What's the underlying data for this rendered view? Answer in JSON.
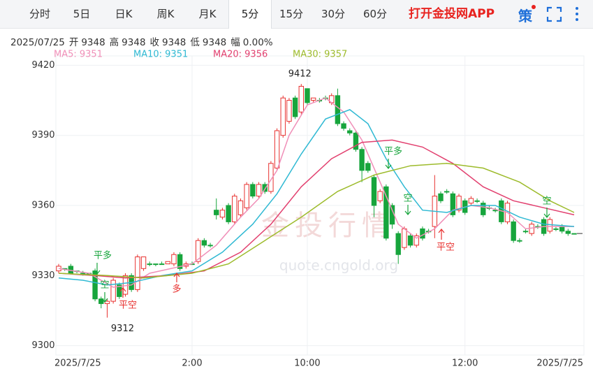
{
  "tabs": [
    {
      "label": "分时"
    },
    {
      "label": "5日"
    },
    {
      "label": "日K"
    },
    {
      "label": "周K"
    },
    {
      "label": "月K"
    },
    {
      "label": "5分",
      "active": true
    },
    {
      "label": "15分"
    },
    {
      "label": "30分"
    },
    {
      "label": "60分"
    }
  ],
  "brand": "打开金投网APP",
  "strategy_icon": "策",
  "info": {
    "date": "2025/07/25",
    "items": [
      {
        "label": "开",
        "value": 9348
      },
      {
        "label": "高",
        "value": 9348
      },
      {
        "label": "收",
        "value": 9348
      },
      {
        "label": "低",
        "value": 9348
      },
      {
        "label": "幅",
        "value": "0.00%"
      }
    ]
  },
  "watermark": {
    "title": "金投行情",
    "url": "quote.cngold.org"
  },
  "chart_data": {
    "type": "candlestick",
    "up_color": "#e8312f",
    "down_color": "#17a53c",
    "categories": [
      "2025/7/25",
      null,
      null,
      null,
      null,
      null,
      null,
      null,
      null,
      null,
      null,
      null,
      null,
      null,
      null,
      null,
      null,
      null,
      null,
      null,
      null,
      null,
      "2:00",
      null,
      null,
      null,
      null,
      null,
      null,
      null,
      null,
      null,
      null,
      null,
      null,
      null,
      null,
      null,
      null,
      null,
      null,
      "10:00",
      null,
      null,
      null,
      null,
      null,
      null,
      null,
      null,
      null,
      null,
      null,
      null,
      null,
      null,
      null,
      null,
      null,
      null,
      null,
      null,
      null,
      null,
      null,
      null,
      null,
      "12:00",
      null,
      null,
      null,
      null,
      null,
      null,
      null,
      null,
      null,
      null,
      null,
      null,
      null,
      null,
      null,
      null,
      null,
      "2025/7/25"
    ],
    "open": [
      9332,
      9333,
      9334,
      9332,
      9331,
      9331,
      9332,
      9320,
      9318,
      9319,
      9326,
      9322,
      9330,
      9324,
      9333,
      9335,
      9335,
      9335,
      9335,
      9335,
      9339,
      9334,
      9335,
      9336,
      9345,
      9343,
      9358,
      9355,
      9360,
      9353,
      9356,
      9359,
      9369,
      9364,
      9369,
      9366,
      9376,
      9390,
      9396,
      9406,
      9400,
      9410,
      9405,
      9405,
      9406,
      9404,
      9407,
      9395,
      9392,
      9391,
      9384,
      9378,
      9372,
      9362,
      9368,
      9360,
      9348,
      9342,
      9347,
      9343,
      9350,
      9349,
      9351,
      9365,
      9366,
      9365,
      9358,
      9362,
      9361,
      9362,
      9361,
      9359,
      9358,
      9362,
      9353,
      9353,
      9345,
      9349,
      9348,
      9351,
      9354,
      9349,
      9350,
      9351,
      9349,
      9348
    ],
    "high": [
      9335,
      9333,
      9335,
      9332,
      9332,
      9331,
      9333,
      9321,
      9320,
      9329,
      9327,
      9331,
      9331,
      9339,
      9338,
      9336,
      9335,
      9336,
      9336,
      9340,
      9340,
      9336,
      9336,
      9346,
      9346,
      9344,
      9363,
      9359,
      9361,
      9365,
      9363,
      9370,
      9370,
      9370,
      9370,
      9379,
      9393,
      9407,
      9406,
      9407,
      9412,
      9410,
      9406,
      9406,
      9407,
      9408,
      9410,
      9396,
      9393,
      9392,
      9385,
      9379,
      9373,
      9367,
      9369,
      9361,
      9349,
      9351,
      9348,
      9348,
      9351,
      9350,
      9373,
      9366,
      9367,
      9366,
      9365,
      9363,
      9364,
      9363,
      9362,
      9360,
      9359,
      9363,
      9362,
      9354,
      9346,
      9350,
      9353,
      9352,
      9355,
      9355,
      9351,
      9352,
      9350,
      9348
    ],
    "low": [
      9331,
      9332,
      9331,
      9331,
      9330,
      9330,
      9319,
      9316,
      9312,
      9318,
      9320,
      9321,
      9323,
      9323,
      9332,
      9334,
      9334,
      9335,
      9335,
      9334,
      9332,
      9333,
      9335,
      9335,
      9342,
      9342,
      9354,
      9354,
      9352,
      9352,
      9355,
      9358,
      9363,
      9363,
      9365,
      9365,
      9375,
      9389,
      9395,
      9397,
      9399,
      9403,
      9404,
      9404,
      9405,
      9403,
      9394,
      9392,
      9390,
      9383,
      9370,
      9374,
      9355,
      9361,
      9345,
      9350,
      9335,
      9341,
      9342,
      9342,
      9345,
      9348,
      9346,
      9361,
      9365,
      9355,
      9357,
      9356,
      9360,
      9361,
      9355,
      9358,
      9357,
      9352,
      9352,
      9344,
      9344,
      9348,
      9347,
      9350,
      9347,
      9348,
      9349,
      9348,
      9347,
      9348
    ],
    "close": [
      9334,
      9333,
      9331,
      9332,
      9331,
      9331,
      9320,
      9318,
      9319,
      9328,
      9321,
      9330,
      9324,
      9338,
      9338,
      9335,
      9335,
      9335,
      9336,
      9339,
      9333,
      9335,
      9335,
      9345,
      9343,
      9343,
      9356,
      9358,
      9353,
      9364,
      9362,
      9369,
      9364,
      9369,
      9366,
      9378,
      9392,
      9406,
      9405,
      9398,
      9411,
      9404,
      9406,
      9405,
      9406,
      9407,
      9395,
      9393,
      9391,
      9384,
      9375,
      9375,
      9360,
      9366,
      9346,
      9352,
      9339,
      9350,
      9343,
      9347,
      9346,
      9349,
      9364,
      9362,
      9366,
      9356,
      9364,
      9357,
      9363,
      9362,
      9356,
      9359,
      9358,
      9353,
      9361,
      9345,
      9345,
      9349,
      9352,
      9351,
      9348,
      9354,
      9350,
      9349,
      9348,
      9348
    ],
    "series": [
      {
        "name": "MA5",
        "label": "MA5: 9351",
        "color": "#f08fb8",
        "x": [
          0,
          5,
          9,
          12,
          15,
          22,
          26,
          30,
          33,
          36,
          38,
          41,
          44,
          47,
          50,
          53,
          56,
          59,
          62,
          65,
          68,
          71,
          74,
          77,
          80,
          83,
          85
        ],
        "values": [
          9333,
          9331,
          9325,
          9326,
          9331,
          9335,
          9343,
          9355,
          9363,
          9375,
          9390,
          9403,
          9406,
          9400,
          9388,
          9370,
          9352,
          9346,
          9350,
          9358,
          9360,
          9359,
          9357,
          9350,
          9351,
          9351,
          9351
        ]
      },
      {
        "name": "MA10",
        "label": "MA10: 9351",
        "color": "#2fb9d3",
        "x": [
          0,
          4,
          8,
          12,
          17,
          22,
          27,
          32,
          36,
          40,
          44,
          48,
          51,
          54,
          57,
          60,
          64,
          68,
          72,
          76,
          80,
          85
        ],
        "values": [
          9329,
          9328,
          9326,
          9327,
          9330,
          9332,
          9340,
          9352,
          9365,
          9382,
          9397,
          9401,
          9395,
          9380,
          9368,
          9358,
          9357,
          9360,
          9360,
          9355,
          9352,
          9351
        ]
      },
      {
        "name": "MA20",
        "label": "MA20: 9356",
        "color": "#e2406f",
        "x": [
          0,
          6,
          11,
          18,
          24,
          30,
          35,
          40,
          45,
          50,
          55,
          60,
          65,
          70,
          75,
          80,
          85
        ],
        "values": [
          9331,
          9330,
          9329,
          9330,
          9332,
          9340,
          9352,
          9368,
          9380,
          9387,
          9388,
          9385,
          9378,
          9368,
          9362,
          9359,
          9356
        ]
      },
      {
        "name": "MA30",
        "label": "MA30: 9357",
        "color": "#9dbb2b",
        "x": [
          0,
          8,
          14,
          22,
          28,
          34,
          40,
          46,
          52,
          58,
          64,
          70,
          76,
          81,
          85
        ],
        "values": [
          9331,
          9330,
          9329,
          9331,
          9335,
          9345,
          9355,
          9366,
          9373,
          9377,
          9378,
          9376,
          9370,
          9362,
          9357
        ]
      }
    ],
    "ylim": [
      9296,
      9424
    ],
    "yticks": [
      9300,
      9330,
      9360,
      9390,
      9420
    ],
    "grid": true,
    "max_label": 9412,
    "min_label": 9312,
    "signals": [
      {
        "text": "平多",
        "color": "#17a53c"
      },
      {
        "text": "空",
        "color": "#17a53c"
      },
      {
        "text": "平空",
        "color": "#e8312f"
      },
      {
        "text": "多",
        "color": "#e8312f"
      },
      {
        "text": "平多",
        "color": "#17a53c"
      },
      {
        "text": "空",
        "color": "#17a53c"
      },
      {
        "text": "平空",
        "color": "#e8312f"
      },
      {
        "text": "空",
        "color": "#17a53c"
      }
    ]
  }
}
